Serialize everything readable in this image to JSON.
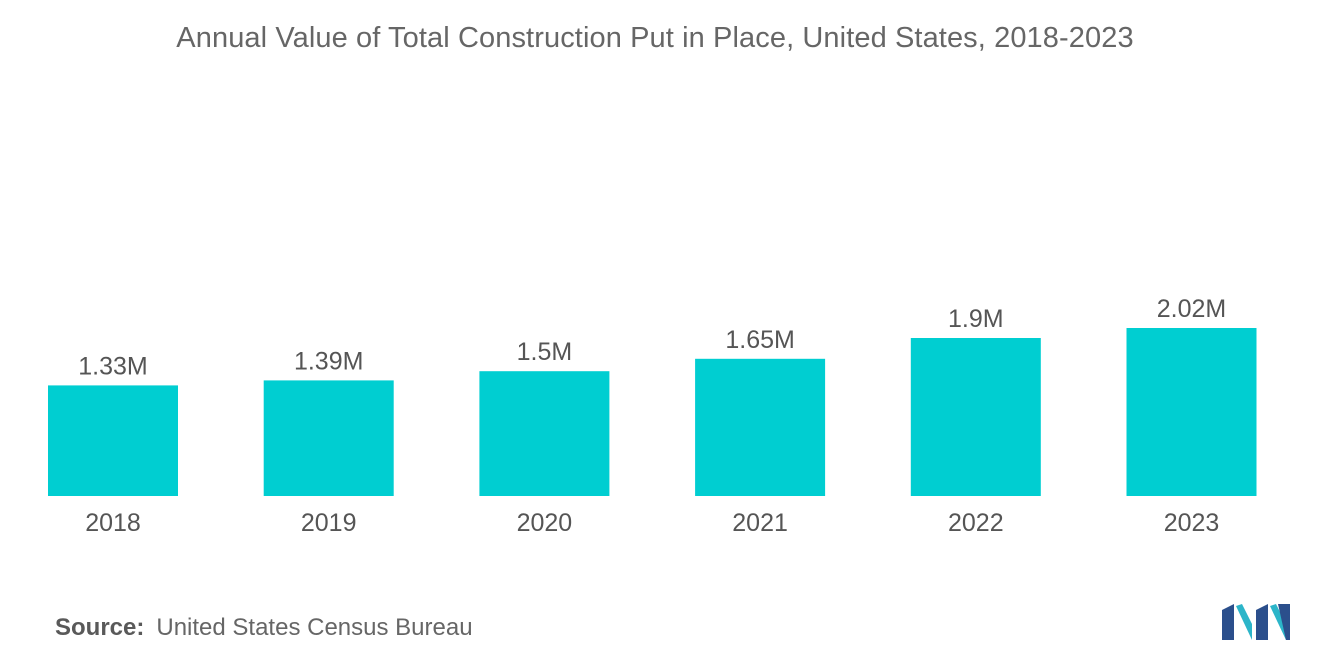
{
  "chart_data": {
    "type": "bar",
    "title": "Annual Value of Total Construction Put in Place, United States, 2018-2023",
    "categories": [
      "2018",
      "2019",
      "2020",
      "2021",
      "2022",
      "2023"
    ],
    "values": [
      1.33,
      1.39,
      1.5,
      1.65,
      1.9,
      2.02
    ],
    "data_labels": [
      "1.33M",
      "1.39M",
      "1.5M",
      "1.65M",
      "1.9M",
      "2.02M"
    ],
    "unit": "M",
    "xlabel": "",
    "ylabel": "",
    "ylim": [
      0,
      2.02
    ],
    "grid": false,
    "legend": "none",
    "bar_color": "#00ced1"
  },
  "source": {
    "label": "Source:",
    "text": "United States Census Bureau"
  },
  "logo": {
    "name": "mordor-intelligence-logo",
    "colors": [
      "#2b4f8c",
      "#2cb5c9"
    ]
  }
}
